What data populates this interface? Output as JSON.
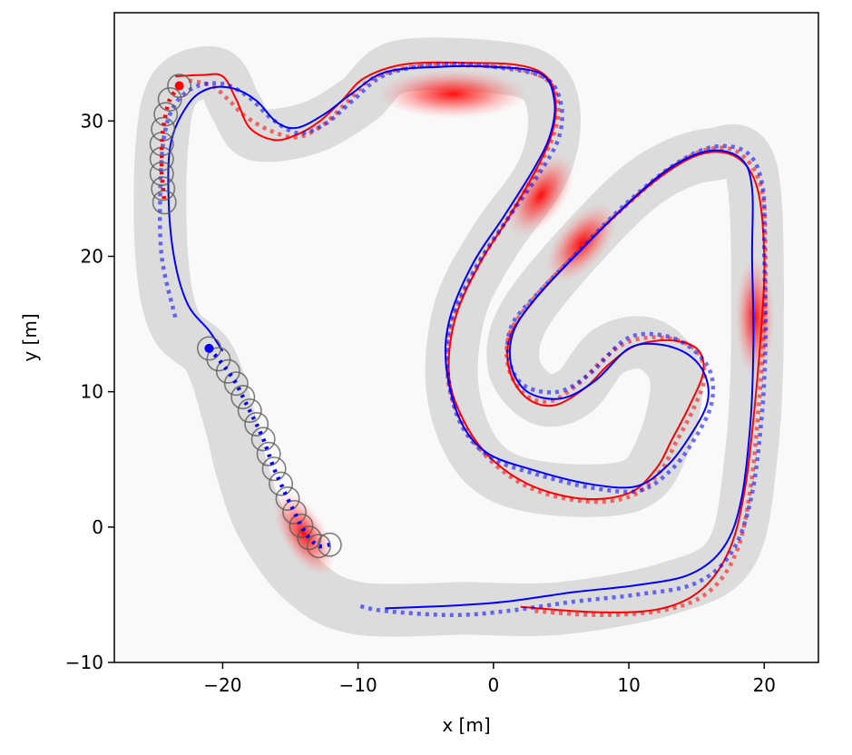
{
  "chart_data": {
    "type": "line",
    "title": "",
    "xlabel": "x [m]",
    "ylabel": "y [m]",
    "xlim": [
      -28,
      24
    ],
    "ylim": [
      -10,
      38
    ],
    "xticks": [
      -20,
      -10,
      0,
      10,
      20
    ],
    "yticks": [
      -10,
      0,
      10,
      20,
      30
    ],
    "xtick_labels": [
      "−20",
      "−10",
      "0",
      "10",
      "20"
    ],
    "ytick_labels": [
      "−10",
      "0",
      "10",
      "20",
      "30"
    ],
    "grid": false,
    "legend": "none",
    "colors": {
      "track": "#dcdcdc",
      "background": "#f9f9f9",
      "red": "#ff0000",
      "blue": "#0000ff",
      "circles": "#555555"
    },
    "track_centerline": [
      [
        -2,
        -6
      ],
      [
        -10,
        -6
      ],
      [
        -14,
        -4
      ],
      [
        -17,
        0
      ],
      [
        -18.5,
        4
      ],
      [
        -19.5,
        8
      ],
      [
        -21,
        12.5
      ],
      [
        -23.5,
        15
      ],
      [
        -24.5,
        20
      ],
      [
        -24.5,
        28
      ],
      [
        -23.5,
        32.5
      ],
      [
        -20.5,
        33.5
      ],
      [
        -19,
        31
      ],
      [
        -17.5,
        29
      ],
      [
        -13.5,
        29.5
      ],
      [
        -10,
        31.5
      ],
      [
        -7,
        34
      ],
      [
        0,
        34
      ],
      [
        3.5,
        33
      ],
      [
        4.5,
        30
      ],
      [
        3.5,
        26
      ],
      [
        0,
        21
      ],
      [
        -2.5,
        16
      ],
      [
        -3,
        10
      ],
      [
        -1,
        5
      ],
      [
        3,
        3
      ],
      [
        10,
        3
      ],
      [
        12.5,
        6
      ],
      [
        13.5,
        11
      ],
      [
        11.5,
        13.5
      ],
      [
        8.5,
        13
      ],
      [
        6,
        10
      ],
      [
        3.5,
        9.5
      ],
      [
        1.5,
        12
      ],
      [
        2.5,
        16
      ],
      [
        8,
        22.5
      ],
      [
        12,
        26
      ],
      [
        16,
        27.5
      ],
      [
        19,
        26.5
      ],
      [
        19.5,
        15
      ],
      [
        19,
        5
      ],
      [
        17.5,
        -2
      ],
      [
        13,
        -4.5
      ],
      [
        5,
        -6
      ],
      [
        -2,
        -6
      ]
    ],
    "series": [
      {
        "color": "#ff0000",
        "style": "solid",
        "points": [
          [
            -23.5,
            33.3
          ],
          [
            -21.5,
            33.4
          ],
          [
            -20,
            33.3
          ],
          [
            -19,
            31.6
          ],
          [
            -18,
            29.5
          ],
          [
            -16.2,
            28.6
          ],
          [
            -14.5,
            29
          ],
          [
            -12.8,
            30
          ],
          [
            -11.2,
            31.5
          ],
          [
            -9.5,
            33.2
          ],
          [
            -6.5,
            34.2
          ],
          [
            -2,
            34.3
          ],
          [
            2,
            34.1
          ],
          [
            4,
            33.2
          ],
          [
            4.6,
            31.3
          ],
          [
            4.3,
            29
          ],
          [
            3.2,
            26.5
          ],
          [
            1.2,
            23
          ],
          [
            -1,
            19.5
          ],
          [
            -2.8,
            15.5
          ],
          [
            -3.3,
            11.5
          ],
          [
            -2.5,
            8.5
          ],
          [
            -0.6,
            5.5
          ],
          [
            2.5,
            3.2
          ],
          [
            6.5,
            2.1
          ],
          [
            10,
            2.5
          ],
          [
            12,
            4.3
          ],
          [
            13.2,
            6.5
          ],
          [
            14.5,
            9
          ],
          [
            15.5,
            11.5
          ],
          [
            15,
            13.2
          ],
          [
            13,
            13.8
          ],
          [
            10.5,
            13.4
          ],
          [
            8.5,
            12
          ],
          [
            6.8,
            10.3
          ],
          [
            4.5,
            9
          ],
          [
            2.5,
            9.5
          ],
          [
            1.2,
            11.5
          ],
          [
            1.2,
            14
          ],
          [
            2.8,
            16.5
          ],
          [
            5.5,
            19.5
          ],
          [
            9,
            23
          ],
          [
            12.5,
            26
          ],
          [
            15.5,
            27.6
          ],
          [
            18,
            27.3
          ],
          [
            19.5,
            25
          ],
          [
            20,
            20
          ],
          [
            19.8,
            15
          ],
          [
            19.3,
            9
          ],
          [
            18.6,
            3
          ],
          [
            17.5,
            -1.5
          ],
          [
            15.5,
            -4.5
          ],
          [
            12.5,
            -6
          ],
          [
            8,
            -6.3
          ],
          [
            2,
            -5.9
          ]
        ]
      },
      {
        "color": "#ff0000",
        "style": "dotted",
        "points": [
          [
            -22.5,
            33
          ],
          [
            -20.8,
            32.6
          ],
          [
            -19.5,
            31.5
          ],
          [
            -18.4,
            30.4
          ],
          [
            -16.5,
            29.3
          ],
          [
            -14.5,
            28.8
          ],
          [
            -12.6,
            29.7
          ],
          [
            -10.8,
            31.4
          ],
          [
            -9,
            33.1
          ],
          [
            -6,
            34
          ],
          [
            -2,
            34.1
          ],
          [
            2,
            33.8
          ],
          [
            4.2,
            32.8
          ],
          [
            4.8,
            30.8
          ],
          [
            4.3,
            28.6
          ],
          [
            3,
            26
          ],
          [
            1,
            22.7
          ],
          [
            -1.2,
            19.2
          ],
          [
            -3,
            15.3
          ],
          [
            -3.4,
            11.4
          ],
          [
            -2.6,
            8.3
          ],
          [
            -0.5,
            5.2
          ],
          [
            2.7,
            2.9
          ],
          [
            6.8,
            1.9
          ],
          [
            10.2,
            2.3
          ],
          [
            12.3,
            4.1
          ],
          [
            13.5,
            6.3
          ],
          [
            14.8,
            8.8
          ],
          [
            15.6,
            11.2
          ],
          [
            14.8,
            13.2
          ],
          [
            12.6,
            14
          ],
          [
            10,
            13.7
          ],
          [
            8,
            12.3
          ],
          [
            6.3,
            10.6
          ],
          [
            4.2,
            9.3
          ],
          [
            2.3,
            9.8
          ],
          [
            1.1,
            11.8
          ],
          [
            1.2,
            14.3
          ],
          [
            2.9,
            16.8
          ],
          [
            5.8,
            19.9
          ],
          [
            9.3,
            23.3
          ],
          [
            12.8,
            26.3
          ],
          [
            15.8,
            27.9
          ],
          [
            18.2,
            27.6
          ],
          [
            19.8,
            25
          ],
          [
            20.1,
            20
          ],
          [
            20,
            15
          ],
          [
            19.6,
            9
          ],
          [
            19,
            3
          ],
          [
            18,
            -1.7
          ],
          [
            16,
            -4.7
          ],
          [
            12.8,
            -6.1
          ],
          [
            8,
            -6.5
          ],
          [
            3,
            -6.2
          ]
        ]
      },
      {
        "color": "#0000ff",
        "style": "solid",
        "points": [
          [
            -20,
            13
          ],
          [
            -21,
            14.5
          ],
          [
            -22.6,
            16.5
          ],
          [
            -23.6,
            20
          ],
          [
            -24,
            24.5
          ],
          [
            -23.8,
            28.5
          ],
          [
            -22.5,
            31.3
          ],
          [
            -21,
            32.4
          ],
          [
            -19.2,
            32.4
          ],
          [
            -17.5,
            31.5
          ],
          [
            -16,
            29.9
          ],
          [
            -14.5,
            29.5
          ],
          [
            -12.5,
            30.5
          ],
          [
            -10.5,
            32
          ],
          [
            -8,
            33.6
          ],
          [
            -4,
            34
          ],
          [
            0,
            34
          ],
          [
            3.5,
            33.5
          ],
          [
            4.5,
            31.5
          ],
          [
            4.2,
            29
          ],
          [
            3,
            26.5
          ],
          [
            0.8,
            23
          ],
          [
            -1.5,
            19.5
          ],
          [
            -3.2,
            15.5
          ],
          [
            -3.5,
            12
          ],
          [
            -2.5,
            8
          ],
          [
            -0.5,
            5.5
          ],
          [
            3,
            4.2
          ],
          [
            7,
            3.2
          ],
          [
            10.5,
            3
          ],
          [
            12.8,
            4.5
          ],
          [
            14.5,
            6.7
          ],
          [
            15.8,
            9.2
          ],
          [
            15.6,
            11.3
          ],
          [
            14.3,
            12.8
          ],
          [
            12.2,
            13.5
          ],
          [
            10,
            13.2
          ],
          [
            7.5,
            10.8
          ],
          [
            5,
            9.5
          ],
          [
            2.5,
            10
          ],
          [
            1.3,
            12
          ],
          [
            1.5,
            14.5
          ],
          [
            3.2,
            17
          ],
          [
            6,
            20
          ],
          [
            9.5,
            23.5
          ],
          [
            13,
            26.5
          ],
          [
            16,
            27.8
          ],
          [
            18.3,
            27.2
          ],
          [
            19.1,
            25
          ],
          [
            19.1,
            20
          ],
          [
            19.2,
            14
          ],
          [
            19,
            8
          ],
          [
            18.3,
            2
          ],
          [
            17,
            -1.5
          ],
          [
            14.5,
            -3.5
          ],
          [
            10.5,
            -4.3
          ],
          [
            6,
            -4.8
          ],
          [
            1,
            -5.5
          ],
          [
            -3,
            -5.8
          ],
          [
            -8,
            -6
          ]
        ]
      },
      {
        "color": "#0000ff",
        "style": "dotted",
        "points": [
          [
            -23.5,
            15.5
          ],
          [
            -24.5,
            20
          ],
          [
            -24.6,
            25
          ],
          [
            -24.3,
            29
          ],
          [
            -23.4,
            31.4
          ],
          [
            -21.8,
            32.6
          ],
          [
            -19.8,
            32.7
          ],
          [
            -18,
            31.7
          ],
          [
            -16.3,
            30.1
          ],
          [
            -14.4,
            29.1
          ],
          [
            -12.4,
            29.8
          ],
          [
            -10.4,
            31.5
          ],
          [
            -8,
            33.4
          ],
          [
            -4,
            34.2
          ],
          [
            0,
            34
          ],
          [
            3.8,
            33.2
          ],
          [
            5,
            31.2
          ],
          [
            4.8,
            28.7
          ],
          [
            3.3,
            26
          ],
          [
            1,
            22.7
          ],
          [
            -1.3,
            19.2
          ],
          [
            -3.1,
            15.3
          ],
          [
            -3.4,
            11.8
          ],
          [
            -2.5,
            7.8
          ],
          [
            -0.3,
            5.2
          ],
          [
            3.2,
            3.9
          ],
          [
            7.3,
            2.9
          ],
          [
            10.8,
            2.7
          ],
          [
            13.2,
            4.3
          ],
          [
            14.9,
            6.6
          ],
          [
            16.1,
            9.1
          ],
          [
            16,
            11.5
          ],
          [
            14.5,
            13.3
          ],
          [
            12.3,
            14.2
          ],
          [
            9.8,
            13.9
          ],
          [
            7.2,
            11.4
          ],
          [
            4.8,
            10
          ],
          [
            2.2,
            10.5
          ],
          [
            1.1,
            12.6
          ],
          [
            1.4,
            15
          ],
          [
            3.4,
            17.4
          ],
          [
            6.3,
            20.4
          ],
          [
            9.8,
            23.9
          ],
          [
            13.4,
            26.8
          ],
          [
            16.3,
            28.1
          ],
          [
            18.8,
            27.6
          ],
          [
            19.9,
            25
          ],
          [
            20,
            20
          ],
          [
            20.1,
            14
          ],
          [
            19.8,
            8
          ],
          [
            19,
            2
          ],
          [
            17.5,
            -2
          ],
          [
            14.8,
            -4.2
          ],
          [
            10.5,
            -5
          ],
          [
            6,
            -5.5
          ],
          [
            1,
            -6.2
          ],
          [
            -3,
            -6.5
          ],
          [
            -8,
            -6.2
          ],
          [
            -10,
            -5.8
          ]
        ]
      }
    ],
    "circle_chains": [
      {
        "color": "#555555",
        "dot_color": "#ff0000",
        "dot_style": "dotted",
        "start": [
          -23.2,
          32.6
        ],
        "points": [
          [
            -23.2,
            32.6
          ],
          [
            -23.9,
            31.6
          ],
          [
            -24.2,
            30.5
          ],
          [
            -24.4,
            29.4
          ],
          [
            -24.5,
            28.3
          ],
          [
            -24.5,
            27.2
          ],
          [
            -24.5,
            26.1
          ],
          [
            -24.4,
            25
          ],
          [
            -24.3,
            24
          ]
        ]
      },
      {
        "color": "#555555",
        "dot_color": "#0000ff",
        "dot_style": "dotted",
        "start": [
          -21,
          13.2
        ],
        "points": [
          [
            -21,
            13.2
          ],
          [
            -20.3,
            12.4
          ],
          [
            -19.6,
            11.5
          ],
          [
            -19,
            10.6
          ],
          [
            -18.5,
            9.6
          ],
          [
            -18,
            8.6
          ],
          [
            -17.5,
            7.6
          ],
          [
            -17,
            6.5
          ],
          [
            -16.6,
            5.4
          ],
          [
            -16.2,
            4.3
          ],
          [
            -15.7,
            3.2
          ],
          [
            -15.2,
            2.1
          ],
          [
            -14.7,
            1.1
          ],
          [
            -14.2,
            0.1
          ],
          [
            -13.6,
            -0.8
          ],
          [
            -12.9,
            -1.4
          ],
          [
            -12.1,
            -1.3
          ]
        ]
      }
    ],
    "uncertainty_blobs": [
      {
        "center": [
          -3,
          32
        ],
        "rx": 5.5,
        "ry": 1.0,
        "angle": 0
      },
      {
        "center": [
          3.5,
          24.5
        ],
        "rx": 3.5,
        "ry": 1.0,
        "angle": -55
      },
      {
        "center": [
          6.5,
          21
        ],
        "rx": 3.5,
        "ry": 1.0,
        "angle": -50
      },
      {
        "center": [
          19.3,
          15.5
        ],
        "rx": 4.5,
        "ry": 0.8,
        "angle": 90
      },
      {
        "center": [
          -14,
          -0.5
        ],
        "rx": 3.5,
        "ry": 0.9,
        "angle": 60
      }
    ]
  }
}
